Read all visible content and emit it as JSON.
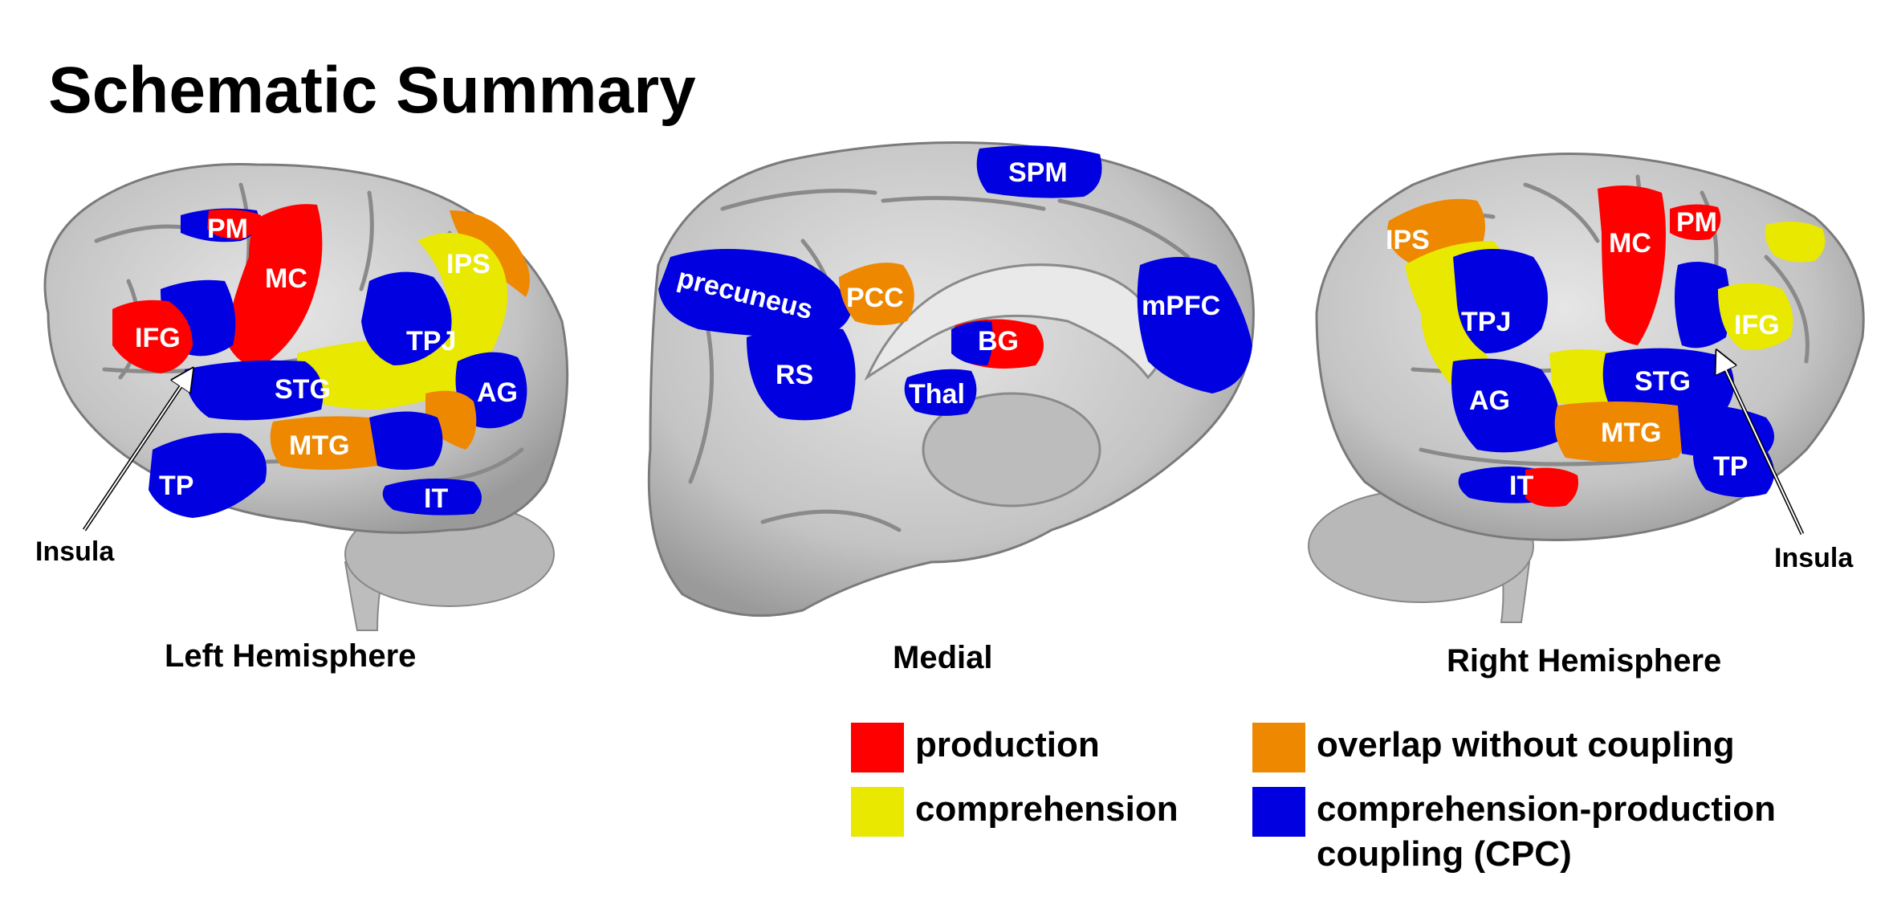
{
  "title": "Schematic Summary",
  "colors": {
    "production": "#ff0000",
    "comprehension": "#e8e800",
    "overlap": "#ee8800",
    "cpc": "#0000e0",
    "brain": "#d2d2d2",
    "sulcus": "#8a8a8a"
  },
  "views": {
    "left": "Left Hemisphere",
    "medial": "Medial",
    "right": "Right Hemisphere"
  },
  "left_regions": {
    "pm": "PM",
    "mc": "MC",
    "ifg": "IFG",
    "ips": "IPS",
    "tpj": "TPJ",
    "stg": "STG",
    "ag": "AG",
    "mtg": "MTG",
    "tp": "TP",
    "it": "IT"
  },
  "medial_regions": {
    "spm": "SPM",
    "precuneus": "precuneus",
    "pcc": "PCC",
    "bg": "BG",
    "mpfc": "mPFC",
    "rs": "RS",
    "thal": "Thal"
  },
  "right_regions": {
    "ips": "IPS",
    "mc": "MC",
    "pm": "PM",
    "tpj": "TPJ",
    "ifg": "IFG",
    "stg": "STG",
    "ag": "AG",
    "mtg": "MTG",
    "tp": "TP",
    "it": "IT"
  },
  "insula_label": "Insula",
  "legend": {
    "production": "production",
    "comprehension": "comprehension",
    "overlap": "overlap without coupling",
    "cpc_line1": "comprehension-production",
    "cpc_line2": "coupling (CPC)"
  }
}
